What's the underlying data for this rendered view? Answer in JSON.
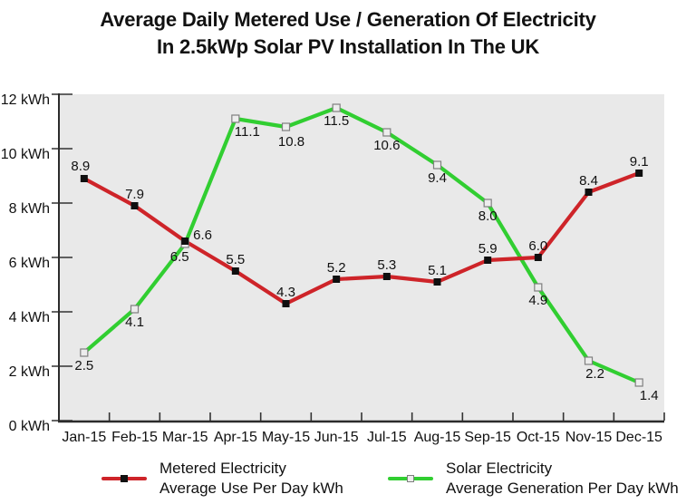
{
  "title": {
    "line1": "Average Daily Metered Use / Generation Of Electricity",
    "line2": "In 2.5kWp Solar PV Installation In The UK"
  },
  "legend": {
    "metered": {
      "line1": "Metered Electricity",
      "line2": "Average Use Per Day kWh"
    },
    "solar": {
      "line1": "Solar Electricity",
      "line2": "Average Generation Per Day kWh"
    }
  },
  "colors": {
    "metered": "#CE2429",
    "solar": "#31CE31",
    "plot_bg": "#E9E9E9",
    "axis": "#2B2B2B",
    "tick": "#333333",
    "text": "#111111"
  },
  "chart_data": {
    "type": "line",
    "title": "Average Daily Metered Use / Generation Of Electricity In 2.5kWp Solar PV Installation In The UK",
    "x": [
      "Jan-15",
      "Feb-15",
      "Mar-15",
      "Apr-15",
      "May-15",
      "Jun-15",
      "Jul-15",
      "Aug-15",
      "Sep-15",
      "Oct-15",
      "Nov-15",
      "Dec-15"
    ],
    "xlabel": "",
    "ylabel": "kWh",
    "ylim": [
      0,
      12
    ],
    "y_tick_step": 2,
    "y_ticks": [
      "0 kWh",
      "2 kWh",
      "4 kWh",
      "6 kWh",
      "8 kWh",
      "10 kWh",
      "12 kWh"
    ],
    "grid": false,
    "legend_position": "bottom",
    "series": [
      {
        "name": "Metered Electricity",
        "description": "Average Use Per Day kWh",
        "color": "#CE2429",
        "marker": "filled-black-square",
        "values": [
          8.9,
          7.9,
          6.6,
          5.5,
          4.3,
          5.2,
          5.3,
          5.1,
          5.9,
          6.0,
          8.4,
          9.1
        ],
        "label_side": "above",
        "label_default": [
          0,
          -8
        ],
        "label_overrides": {
          "0": [
            -4,
            -9
          ],
          "2": [
            9,
            -2,
            "start"
          ]
        }
      },
      {
        "name": "Solar Electricity",
        "description": "Average Generation Per Day kWh",
        "color": "#31CE31",
        "marker": "open-gray-square",
        "values": [
          2.5,
          4.1,
          6.5,
          11.1,
          10.8,
          11.5,
          10.6,
          9.4,
          8.0,
          4.9,
          2.2,
          1.4
        ],
        "label_side": "below",
        "label_default": [
          0,
          19
        ],
        "label_overrides": {
          "2": [
            -6,
            19
          ],
          "3": [
            13,
            19
          ],
          "4": [
            6,
            21
          ],
          "10": [
            7,
            19
          ],
          "11": [
            11,
            19
          ]
        }
      }
    ]
  }
}
